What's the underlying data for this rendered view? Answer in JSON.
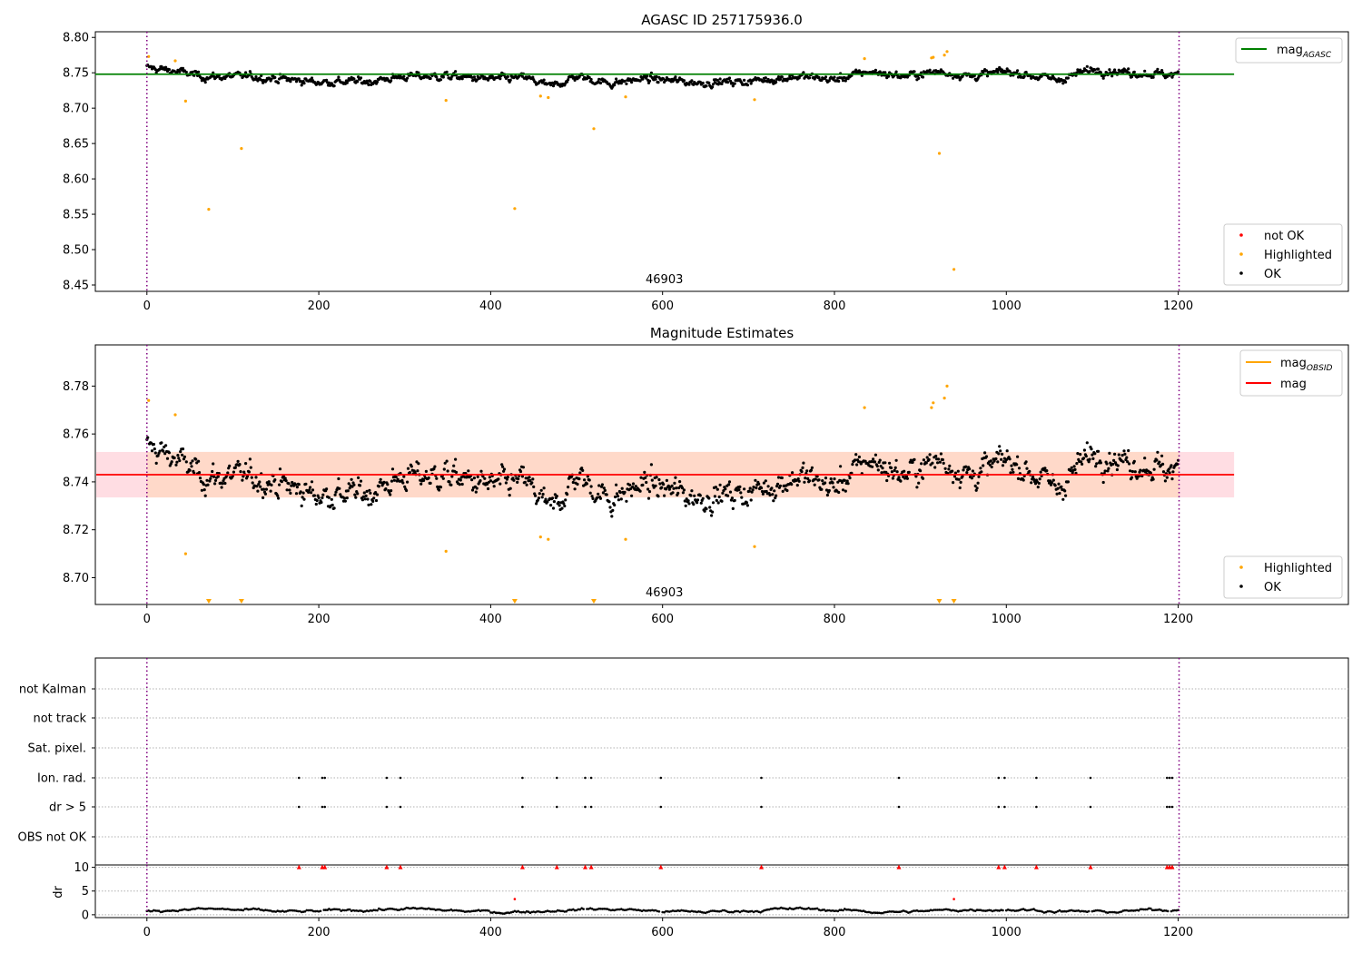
{
  "figure": {
    "title": "AGASC ID 257175936.0"
  },
  "chart_data": [
    {
      "id": "top",
      "type": "scatter",
      "title": "",
      "xlabel": "",
      "ylabel": "",
      "xlim": [
        -60,
        1398
      ],
      "ylim": [
        8.441,
        8.808
      ],
      "xticks": [
        0,
        200,
        400,
        600,
        800,
        1000,
        1200
      ],
      "yticks": [
        8.45,
        8.5,
        8.55,
        8.6,
        8.65,
        8.7,
        8.75,
        8.8
      ],
      "vlines": [
        0,
        1201
      ],
      "obsid_label": {
        "text": "46903",
        "x": 600
      },
      "hline": {
        "name": "mag_AGASC",
        "y": 8.748,
        "x0": -60,
        "x1": 1265,
        "color": "#008000"
      },
      "legend_line": {
        "name": "mag",
        "subscript": "AGASC",
        "color": "#008000",
        "position": "upper right"
      },
      "legend_points": {
        "position": "lower right",
        "entries": [
          {
            "name": "not OK",
            "color": "#ff0000"
          },
          {
            "name": "Highlighted",
            "color": "#ffa500"
          },
          {
            "name": "OK",
            "color": "#000000"
          }
        ]
      },
      "ok_series": {
        "n": 1201,
        "mean": 8.745,
        "trend": [
          [
            0,
            8.757
          ],
          [
            30,
            8.753
          ],
          [
            70,
            8.744
          ],
          [
            120,
            8.745
          ],
          [
            200,
            8.737
          ],
          [
            260,
            8.738
          ],
          [
            300,
            8.745
          ],
          [
            350,
            8.745
          ],
          [
            400,
            8.741
          ],
          [
            440,
            8.743
          ],
          [
            470,
            8.73
          ],
          [
            500,
            8.745
          ],
          [
            540,
            8.735
          ],
          [
            580,
            8.742
          ],
          [
            640,
            8.736
          ],
          [
            700,
            8.738
          ],
          [
            760,
            8.745
          ],
          [
            800,
            8.74
          ],
          [
            840,
            8.752
          ],
          [
            880,
            8.745
          ],
          [
            920,
            8.752
          ],
          [
            960,
            8.745
          ],
          [
            1000,
            8.752
          ],
          [
            1060,
            8.74
          ],
          [
            1100,
            8.755
          ],
          [
            1150,
            8.75
          ],
          [
            1201,
            8.747
          ]
        ]
      },
      "highlighted": [
        {
          "x": 2,
          "y": 8.773
        },
        {
          "x": 33,
          "y": 8.767
        },
        {
          "x": 45,
          "y": 8.71
        },
        {
          "x": 72,
          "y": 8.557
        },
        {
          "x": 110,
          "y": 8.643
        },
        {
          "x": 348,
          "y": 8.711
        },
        {
          "x": 428,
          "y": 8.558
        },
        {
          "x": 458,
          "y": 8.717
        },
        {
          "x": 467,
          "y": 8.715
        },
        {
          "x": 520,
          "y": 8.671
        },
        {
          "x": 557,
          "y": 8.716
        },
        {
          "x": 707,
          "y": 8.712
        },
        {
          "x": 835,
          "y": 8.77
        },
        {
          "x": 913,
          "y": 8.771
        },
        {
          "x": 915,
          "y": 8.772
        },
        {
          "x": 922,
          "y": 8.636
        },
        {
          "x": 928,
          "y": 8.775
        },
        {
          "x": 931,
          "y": 8.78
        },
        {
          "x": 939,
          "y": 8.472
        }
      ]
    },
    {
      "id": "middle",
      "type": "scatter",
      "title": "Magnitude Estimates",
      "xlabel": "",
      "ylabel": "",
      "xlim": [
        -60,
        1398
      ],
      "ylim": [
        8.6888,
        8.7972
      ],
      "xticks": [
        0,
        200,
        400,
        600,
        800,
        1000,
        1200
      ],
      "yticks": [
        8.7,
        8.72,
        8.74,
        8.76,
        8.78
      ],
      "vlines": [
        0,
        1201
      ],
      "obsid_label": {
        "text": "46903",
        "x": 600
      },
      "mag_line": {
        "name": "mag",
        "y": 8.743,
        "color": "#ff0000"
      },
      "band_outer": {
        "y0": 8.7335,
        "y1": 8.7525,
        "color": "#ffdde3"
      },
      "band_inner": {
        "y0": 8.7335,
        "y1": 8.7525,
        "color": "#ffd9c9"
      },
      "obsid_band": {
        "name": "mag_OBSID",
        "color": "#ffa500"
      },
      "legend_lines": {
        "position": "upper right",
        "entries": [
          {
            "name": "mag",
            "subscript": "OBSID",
            "color": "#ffa500"
          },
          {
            "name": "mag",
            "subscript": "",
            "color": "#ff0000"
          }
        ]
      },
      "legend_points": {
        "position": "lower right",
        "entries": [
          {
            "name": "Highlighted",
            "color": "#ffa500"
          },
          {
            "name": "OK",
            "color": "#000000"
          }
        ]
      },
      "highlighted": [
        {
          "x": 2,
          "y": 8.774
        },
        {
          "x": 33,
          "y": 8.768
        },
        {
          "x": 45,
          "y": 8.71
        },
        {
          "x": 348,
          "y": 8.711
        },
        {
          "x": 458,
          "y": 8.717
        },
        {
          "x": 467,
          "y": 8.716
        },
        {
          "x": 557,
          "y": 8.716
        },
        {
          "x": 707,
          "y": 8.713
        },
        {
          "x": 835,
          "y": 8.771
        },
        {
          "x": 913,
          "y": 8.771
        },
        {
          "x": 915,
          "y": 8.773
        },
        {
          "x": 928,
          "y": 8.775
        },
        {
          "x": 931,
          "y": 8.78
        }
      ],
      "below_range": [
        72,
        110,
        428,
        520,
        922,
        939
      ]
    },
    {
      "id": "flags",
      "type": "scatter",
      "title": "",
      "xlabel": "",
      "ylabel": "",
      "xlim": [
        -60,
        1398
      ],
      "categories": [
        "not Kalman",
        "not track",
        "Sat. pixel.",
        "Ion. rad.",
        "dr > 5",
        "OBS not OK"
      ],
      "vlines": [
        0,
        1201
      ],
      "flag_points": {
        "Ion. rad.": [
          177,
          204,
          207,
          279,
          295,
          437,
          477,
          510,
          517,
          598,
          715,
          875,
          991,
          998,
          1035,
          1098,
          1187,
          1190,
          1193
        ],
        "dr > 5": [
          177,
          204,
          207,
          279,
          295,
          437,
          477,
          510,
          517,
          598,
          715,
          875,
          991,
          998,
          1035,
          1098,
          1187,
          1190,
          1193
        ]
      }
    },
    {
      "id": "dr",
      "type": "scatter",
      "title": "",
      "xlabel": "",
      "ylabel": "dr",
      "xlim": [
        -60,
        1398
      ],
      "ylim": [
        -0.6,
        10.5
      ],
      "xticks": [
        0,
        200,
        400,
        600,
        800,
        1000,
        1200
      ],
      "yticks": [
        0,
        5,
        10
      ],
      "vlines": [
        0,
        1201
      ],
      "clipped_marker_y": 10,
      "clipped": [
        177,
        204,
        207,
        279,
        295,
        437,
        477,
        510,
        517,
        598,
        715,
        875,
        991,
        998,
        1035,
        1098,
        1187,
        1190,
        1193
      ],
      "highlighted": [
        {
          "x": 428,
          "y": 3.3
        },
        {
          "x": 939,
          "y": 3.3
        }
      ],
      "ok_series": {
        "n": 1201,
        "mean": 0.9
      }
    }
  ]
}
